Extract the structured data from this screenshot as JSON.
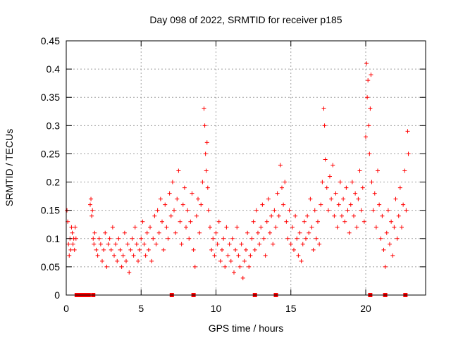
{
  "chart_data": {
    "type": "scatter",
    "title": "Day 098 of 2022, SRMTID for receiver p185",
    "xlabel": "GPS time / hours",
    "ylabel": "SRMTID / TECUs",
    "xlim": [
      0,
      24
    ],
    "ylim": [
      0,
      0.45
    ],
    "x_ticks": [
      0,
      5,
      10,
      15,
      20
    ],
    "x_tick_labels": [
      "0",
      "5",
      "10",
      "15",
      "20"
    ],
    "y_ticks": [
      0,
      0.05,
      0.1,
      0.15,
      0.2,
      0.25,
      0.3,
      0.35,
      0.4,
      0.45
    ],
    "y_tick_labels": [
      "0",
      "0.05",
      "0.1",
      "0.15",
      "0.2",
      "0.25",
      "0.3",
      "0.35",
      "0.4",
      "0.45"
    ],
    "grid": true,
    "marker": "plus",
    "color": "#ff0000",
    "series": [
      {
        "name": "SRMTID",
        "points": [
          [
            0.05,
            0.15
          ],
          [
            0.1,
            0.13
          ],
          [
            0.15,
            0.09
          ],
          [
            0.2,
            0.07
          ],
          [
            0.25,
            0.1
          ],
          [
            0.3,
            0.08
          ],
          [
            0.35,
            0.12
          ],
          [
            0.4,
            0.11
          ],
          [
            0.45,
            0.09
          ],
          [
            0.5,
            0.1
          ],
          [
            0.55,
            0.08
          ],
          [
            0.6,
            0.12
          ],
          [
            0.65,
            0.1
          ],
          [
            1.6,
            0.16
          ],
          [
            1.65,
            0.17
          ],
          [
            1.7,
            0.14
          ],
          [
            1.75,
            0.15
          ],
          [
            1.8,
            0.1
          ],
          [
            1.85,
            0.09
          ],
          [
            1.9,
            0.11
          ],
          [
            2.0,
            0.08
          ],
          [
            2.1,
            0.07
          ],
          [
            2.2,
            0.1
          ],
          [
            2.3,
            0.09
          ],
          [
            2.4,
            0.06
          ],
          [
            2.5,
            0.08
          ],
          [
            2.6,
            0.11
          ],
          [
            2.7,
            0.05
          ],
          [
            2.8,
            0.09
          ],
          [
            2.9,
            0.1
          ],
          [
            3.0,
            0.08
          ],
          [
            3.1,
            0.12
          ],
          [
            3.2,
            0.07
          ],
          [
            3.3,
            0.09
          ],
          [
            3.4,
            0.06
          ],
          [
            3.5,
            0.1
          ],
          [
            3.6,
            0.08
          ],
          [
            3.7,
            0.05
          ],
          [
            3.8,
            0.07
          ],
          [
            3.9,
            0.11
          ],
          [
            4.0,
            0.06
          ],
          [
            4.1,
            0.09
          ],
          [
            4.2,
            0.04
          ],
          [
            4.3,
            0.08
          ],
          [
            4.4,
            0.1
          ],
          [
            4.5,
            0.07
          ],
          [
            4.6,
            0.12
          ],
          [
            4.7,
            0.09
          ],
          [
            4.8,
            0.06
          ],
          [
            4.9,
            0.08
          ],
          [
            5.0,
            0.1
          ],
          [
            5.1,
            0.13
          ],
          [
            5.2,
            0.09
          ],
          [
            5.3,
            0.07
          ],
          [
            5.4,
            0.11
          ],
          [
            5.5,
            0.08
          ],
          [
            5.6,
            0.12
          ],
          [
            5.7,
            0.06
          ],
          [
            5.8,
            0.1
          ],
          [
            5.9,
            0.14
          ],
          [
            6.0,
            0.09
          ],
          [
            6.1,
            0.15
          ],
          [
            6.2,
            0.11
          ],
          [
            6.3,
            0.17
          ],
          [
            6.4,
            0.13
          ],
          [
            6.5,
            0.08
          ],
          [
            6.6,
            0.16
          ],
          [
            6.7,
            0.12
          ],
          [
            6.8,
            0.1
          ],
          [
            6.9,
            0.18
          ],
          [
            7.0,
            0.14
          ],
          [
            7.1,
            0.2
          ],
          [
            7.2,
            0.15
          ],
          [
            7.3,
            0.11
          ],
          [
            7.4,
            0.17
          ],
          [
            7.5,
            0.22
          ],
          [
            7.6,
            0.13
          ],
          [
            7.7,
            0.09
          ],
          [
            7.8,
            0.16
          ],
          [
            7.9,
            0.19
          ],
          [
            8.0,
            0.12
          ],
          [
            8.1,
            0.15
          ],
          [
            8.2,
            0.1
          ],
          [
            8.3,
            0.13
          ],
          [
            8.4,
            0.18
          ],
          [
            8.5,
            0.08
          ],
          [
            8.6,
            0.05
          ],
          [
            8.7,
            0.14
          ],
          [
            8.8,
            0.17
          ],
          [
            8.9,
            0.11
          ],
          [
            9.0,
            0.16
          ],
          [
            9.1,
            0.2
          ],
          [
            9.2,
            0.33
          ],
          [
            9.25,
            0.3
          ],
          [
            9.3,
            0.25
          ],
          [
            9.35,
            0.22
          ],
          [
            9.4,
            0.27
          ],
          [
            9.45,
            0.19
          ],
          [
            9.5,
            0.15
          ],
          [
            9.6,
            0.12
          ],
          [
            9.7,
            0.08
          ],
          [
            9.8,
            0.1
          ],
          [
            9.9,
            0.07
          ],
          [
            10.0,
            0.11
          ],
          [
            10.1,
            0.09
          ],
          [
            10.2,
            0.13
          ],
          [
            10.3,
            0.06
          ],
          [
            10.4,
            0.08
          ],
          [
            10.5,
            0.1
          ],
          [
            10.6,
            0.05
          ],
          [
            10.7,
            0.12
          ],
          [
            10.8,
            0.07
          ],
          [
            10.9,
            0.09
          ],
          [
            11.0,
            0.06
          ],
          [
            11.1,
            0.1
          ],
          [
            11.2,
            0.04
          ],
          [
            11.3,
            0.08
          ],
          [
            11.4,
            0.12
          ],
          [
            11.5,
            0.07
          ],
          [
            11.6,
            0.05
          ],
          [
            11.7,
            0.09
          ],
          [
            11.8,
            0.03
          ],
          [
            11.9,
            0.06
          ],
          [
            12.0,
            0.08
          ],
          [
            12.1,
            0.11
          ],
          [
            12.2,
            0.05
          ],
          [
            12.3,
            0.07
          ],
          [
            12.4,
            0.1
          ],
          [
            12.5,
            0.13
          ],
          [
            12.6,
            0.08
          ],
          [
            12.7,
            0.15
          ],
          [
            12.8,
            0.11
          ],
          [
            12.9,
            0.09
          ],
          [
            13.0,
            0.12
          ],
          [
            13.1,
            0.16
          ],
          [
            13.2,
            0.1
          ],
          [
            13.3,
            0.07
          ],
          [
            13.4,
            0.13
          ],
          [
            13.5,
            0.17
          ],
          [
            13.6,
            0.11
          ],
          [
            13.7,
            0.14
          ],
          [
            13.8,
            0.09
          ],
          [
            13.9,
            0.15
          ],
          [
            14.0,
            0.12
          ],
          [
            14.1,
            0.18
          ],
          [
            14.2,
            0.14
          ],
          [
            14.3,
            0.23
          ],
          [
            14.4,
            0.19
          ],
          [
            14.5,
            0.16
          ],
          [
            14.6,
            0.2
          ],
          [
            14.7,
            0.13
          ],
          [
            14.8,
            0.1
          ],
          [
            14.9,
            0.15
          ],
          [
            15.0,
            0.09
          ],
          [
            15.1,
            0.12
          ],
          [
            15.2,
            0.08
          ],
          [
            15.3,
            0.14
          ],
          [
            15.4,
            0.1
          ],
          [
            15.5,
            0.07
          ],
          [
            15.6,
            0.11
          ],
          [
            15.7,
            0.06
          ],
          [
            15.8,
            0.09
          ],
          [
            15.9,
            0.13
          ],
          [
            16.0,
            0.1
          ],
          [
            16.1,
            0.14
          ],
          [
            16.2,
            0.11
          ],
          [
            16.3,
            0.17
          ],
          [
            16.4,
            0.12
          ],
          [
            16.5,
            0.08
          ],
          [
            16.6,
            0.15
          ],
          [
            16.7,
            0.1
          ],
          [
            16.8,
            0.13
          ],
          [
            16.9,
            0.09
          ],
          [
            17.0,
            0.16
          ],
          [
            17.1,
            0.2
          ],
          [
            17.2,
            0.33
          ],
          [
            17.25,
            0.3
          ],
          [
            17.3,
            0.24
          ],
          [
            17.4,
            0.19
          ],
          [
            17.5,
            0.15
          ],
          [
            17.6,
            0.21
          ],
          [
            17.7,
            0.17
          ],
          [
            17.8,
            0.23
          ],
          [
            17.9,
            0.14
          ],
          [
            18.0,
            0.18
          ],
          [
            18.1,
            0.12
          ],
          [
            18.2,
            0.16
          ],
          [
            18.3,
            0.2
          ],
          [
            18.4,
            0.14
          ],
          [
            18.5,
            0.17
          ],
          [
            18.6,
            0.13
          ],
          [
            18.7,
            0.19
          ],
          [
            18.8,
            0.15
          ],
          [
            18.9,
            0.11
          ],
          [
            19.0,
            0.16
          ],
          [
            19.1,
            0.2
          ],
          [
            19.2,
            0.14
          ],
          [
            19.3,
            0.18
          ],
          [
            19.4,
            0.12
          ],
          [
            19.5,
            0.17
          ],
          [
            19.6,
            0.22
          ],
          [
            19.7,
            0.15
          ],
          [
            19.8,
            0.19
          ],
          [
            19.9,
            0.13
          ],
          [
            20.0,
            0.28
          ],
          [
            20.05,
            0.41
          ],
          [
            20.1,
            0.35
          ],
          [
            20.15,
            0.38
          ],
          [
            20.2,
            0.3
          ],
          [
            20.25,
            0.25
          ],
          [
            20.3,
            0.33
          ],
          [
            20.35,
            0.39
          ],
          [
            20.4,
            0.2
          ],
          [
            20.5,
            0.15
          ],
          [
            20.6,
            0.18
          ],
          [
            20.7,
            0.12
          ],
          [
            20.8,
            0.22
          ],
          [
            20.9,
            0.16
          ],
          [
            21.0,
            0.1
          ],
          [
            21.1,
            0.14
          ],
          [
            21.2,
            0.08
          ],
          [
            21.3,
            0.05
          ],
          [
            21.4,
            0.11
          ],
          [
            21.5,
            0.15
          ],
          [
            21.6,
            0.09
          ],
          [
            21.7,
            0.13
          ],
          [
            21.8,
            0.07
          ],
          [
            21.9,
            0.12
          ],
          [
            22.0,
            0.17
          ],
          [
            22.1,
            0.1
          ],
          [
            22.2,
            0.14
          ],
          [
            22.3,
            0.19
          ],
          [
            22.4,
            0.12
          ],
          [
            22.5,
            0.16
          ],
          [
            22.6,
            0.22
          ],
          [
            22.7,
            0.15
          ],
          [
            22.8,
            0.29
          ],
          [
            22.85,
            0.25
          ]
        ],
        "zero_points": [
          0.7,
          0.8,
          0.9,
          1.0,
          1.1,
          1.2,
          1.3,
          1.4,
          1.5,
          1.8,
          7.05,
          8.5,
          12.6,
          14.0,
          20.3,
          21.3,
          22.65
        ]
      }
    ]
  }
}
